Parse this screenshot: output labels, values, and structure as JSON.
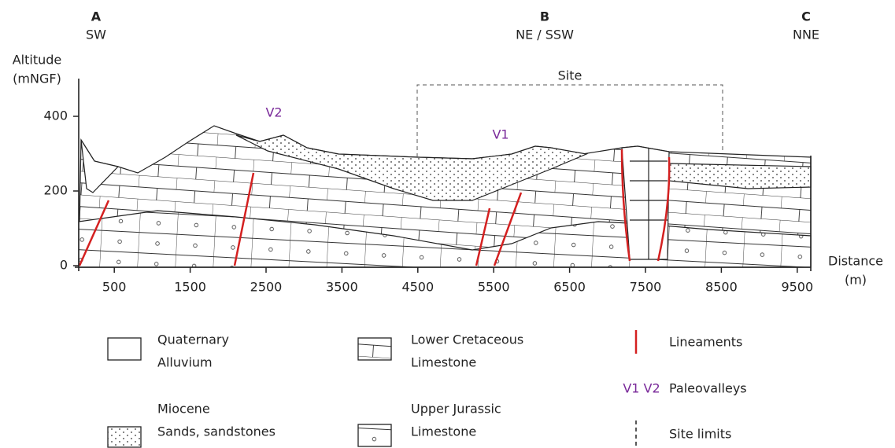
{
  "profile_points": [
    {
      "letter": "A",
      "direction": "SW"
    },
    {
      "letter": "B",
      "direction": "NE / SSW"
    },
    {
      "letter": "C",
      "direction": "NNE"
    }
  ],
  "y_axis": {
    "label_line1": "Altitude",
    "label_line2": "(mNGF)",
    "ticks": [
      0,
      200,
      400
    ]
  },
  "x_axis": {
    "label_line1": "Distance",
    "label_line2": "(m)",
    "ticks": [
      500,
      1500,
      2500,
      3500,
      4500,
      5500,
      6500,
      7500,
      8500,
      9500
    ]
  },
  "annotations": {
    "site": "Site",
    "v1": "V1",
    "v2": "V2"
  },
  "legend": [
    {
      "label_line1": "Quaternary",
      "label_line2": "Alluvium"
    },
    {
      "label_line1": "Miocene",
      "label_line2": "Sands, sandstones"
    },
    {
      "label_line1": "Lower Cretaceous",
      "label_line2": "Limestone"
    },
    {
      "label_line1": "Upper Jurassic",
      "label_line2": "Limestone"
    },
    {
      "label": "Lineaments"
    },
    {
      "symbol": "V1 V2",
      "label": "Paleovalleys"
    },
    {
      "label": "Site limits"
    }
  ]
}
